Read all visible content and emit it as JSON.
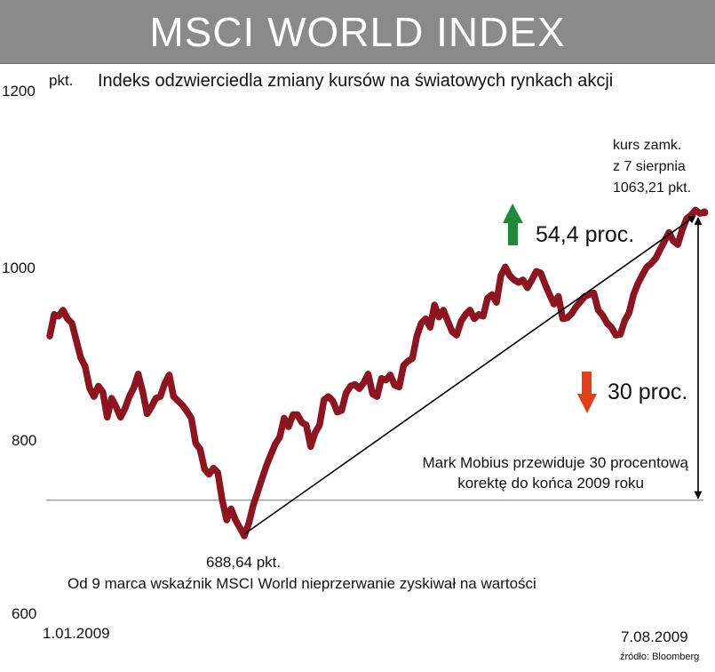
{
  "title": "MSCI WORLD INDEX",
  "chart_data": {
    "type": "line",
    "title": "MSCI WORLD INDEX",
    "subtitle": "Indeks odzwierciedla zmiany kursów na światowych rynkach akcji",
    "ylabel": "pkt.",
    "ylim": [
      600,
      1200
    ],
    "yticks": [
      "1200",
      "1000",
      "800",
      "600"
    ],
    "x_start_label": "1.01.2009",
    "x_end_label": "7.08.2009",
    "source": "źródło: Bloomberg",
    "series": [
      {
        "name": "MSCI World",
        "color": "#8b1520",
        "values": [
          920,
          945,
          943,
          950,
          940,
          935,
          915,
          895,
          885,
          860,
          850,
          862,
          855,
          826,
          848,
          838,
          826,
          836,
          850,
          860,
          876,
          856,
          830,
          838,
          848,
          850,
          865,
          875,
          850,
          845,
          840,
          833,
          825,
          796,
          789,
          766,
          760,
          767,
          762,
          730,
          707,
          720,
          707,
          698,
          688.64,
          703,
          724,
          739,
          755,
          770,
          783,
          795,
          803,
          825,
          815,
          829,
          829,
          820,
          817,
          792,
          808,
          817,
          846,
          850,
          845,
          832,
          834,
          854,
          862,
          864,
          859,
          866,
          876,
          853,
          850,
          871,
          869,
          875,
          863,
          861,
          886,
          891,
          894,
          920,
          935,
          940,
          930,
          956,
          942,
          950,
          937,
          925,
          921,
          937,
          945,
          950,
          940,
          945,
          943,
          964,
          968,
          959,
          990,
          1000,
          990,
          985,
          982,
          985,
          976,
          985,
          995,
          993,
          980,
          968,
          957,
          966,
          940,
          941,
          946,
          954,
          960,
          966,
          968,
          970,
          950,
          944,
          935,
          930,
          921,
          922,
          938,
          947,
          968,
          981,
          991,
          1000,
          1004,
          1010,
          1020,
          1030,
          1040,
          1030,
          1026,
          1043,
          1056,
          1060,
          1066,
          1062,
          1063.21
        ]
      }
    ],
    "annotations": {
      "close_label": [
        "kurs zamk.",
        "z 7 sierpnia",
        "1063,21 pkt."
      ],
      "low_label": "688,64 pkt.",
      "low_caption": "Od 9 marca wskaźnik MSCI World nieprzerwanie zyskiwał na wartości",
      "gain_label": "54,4 proc.",
      "gain_color": "#1e8a3c",
      "drop_label": "30 proc.",
      "drop_color": "#e0401a",
      "forecast_label": [
        "Mark Mobius przewiduje 30 procentową",
        "korektę do końca 2009 roku"
      ],
      "forecast_level": 730
    }
  }
}
